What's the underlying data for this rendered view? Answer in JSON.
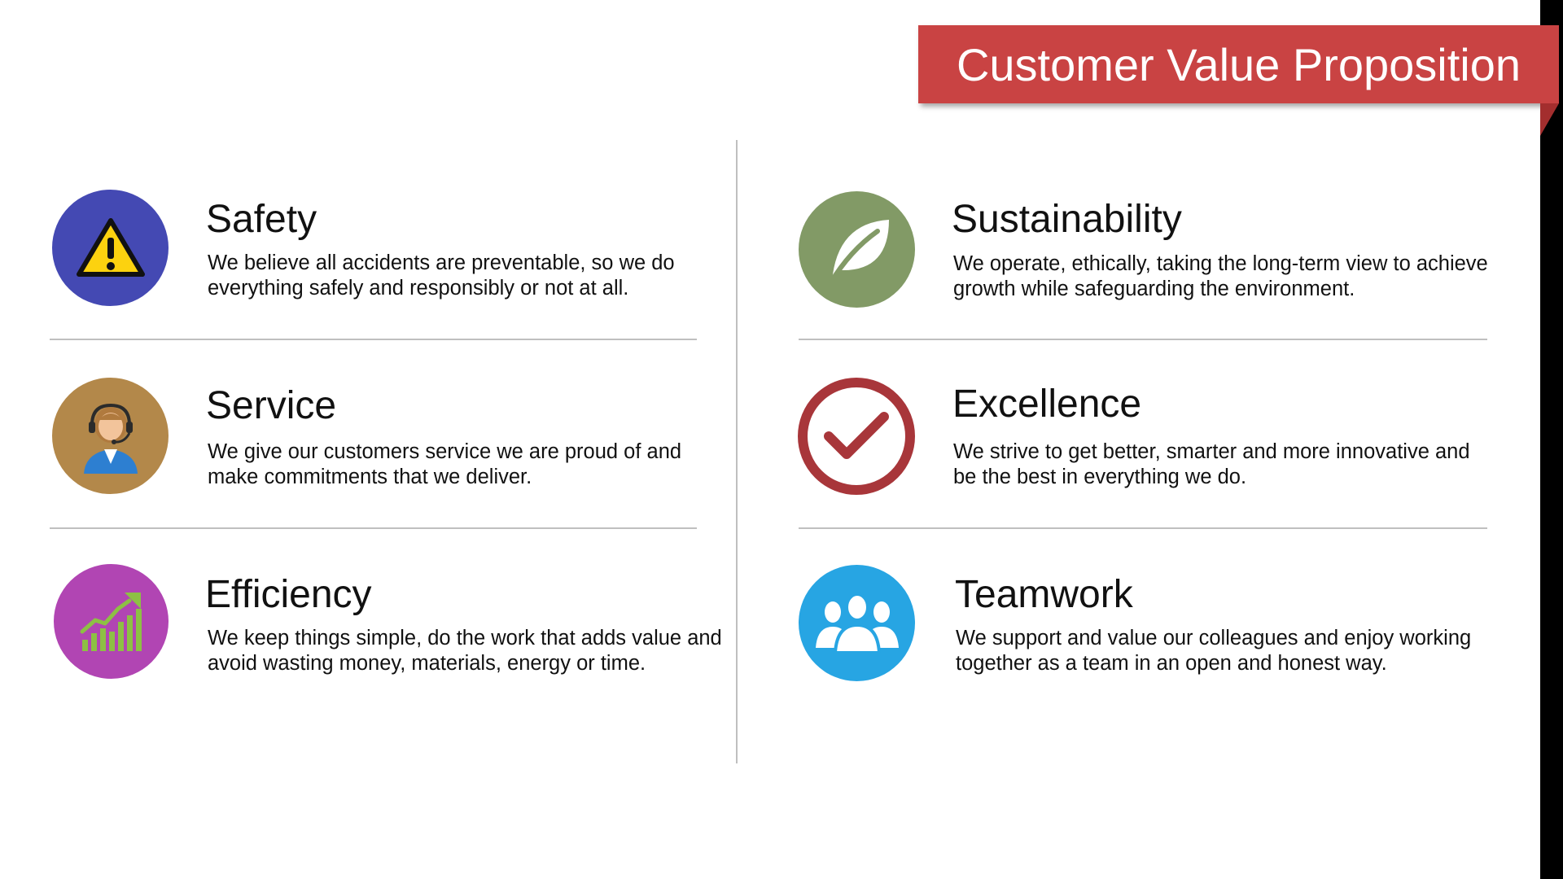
{
  "banner": {
    "title": "Customer Value Proposition",
    "color": "#c94343"
  },
  "cards": [
    {
      "title": "Safety",
      "description": "We believe all accidents are preventable, so we do everything safely and responsibly or not at all.",
      "icon": "warning-icon",
      "color": "#4449b3"
    },
    {
      "title": "Service",
      "description": "We give our customers service we are proud of and make commitments that we deliver.",
      "icon": "customer-service-agent-icon",
      "color": "#b3884a"
    },
    {
      "title": "Efficiency",
      "description": "We keep things simple, do the work that adds value and avoid wasting money, materials, energy or time.",
      "icon": "growth-chart-icon",
      "color": "#b145b3"
    },
    {
      "title": "Sustainability",
      "description": "We operate, ethically, taking the long-term view to achieve growth while safeguarding the environment.",
      "icon": "leaf-icon",
      "color": "#829a66"
    },
    {
      "title": "Excellence",
      "description": "We strive to get better, smarter and more innovative and be the best in everything we do.",
      "icon": "checkmark-icon",
      "color": "#a8363a"
    },
    {
      "title": "Teamwork",
      "description": "We support and value our colleagues and enjoy working together as a team in an open and honest way.",
      "icon": "team-icon",
      "color": "#27a5e3"
    }
  ]
}
